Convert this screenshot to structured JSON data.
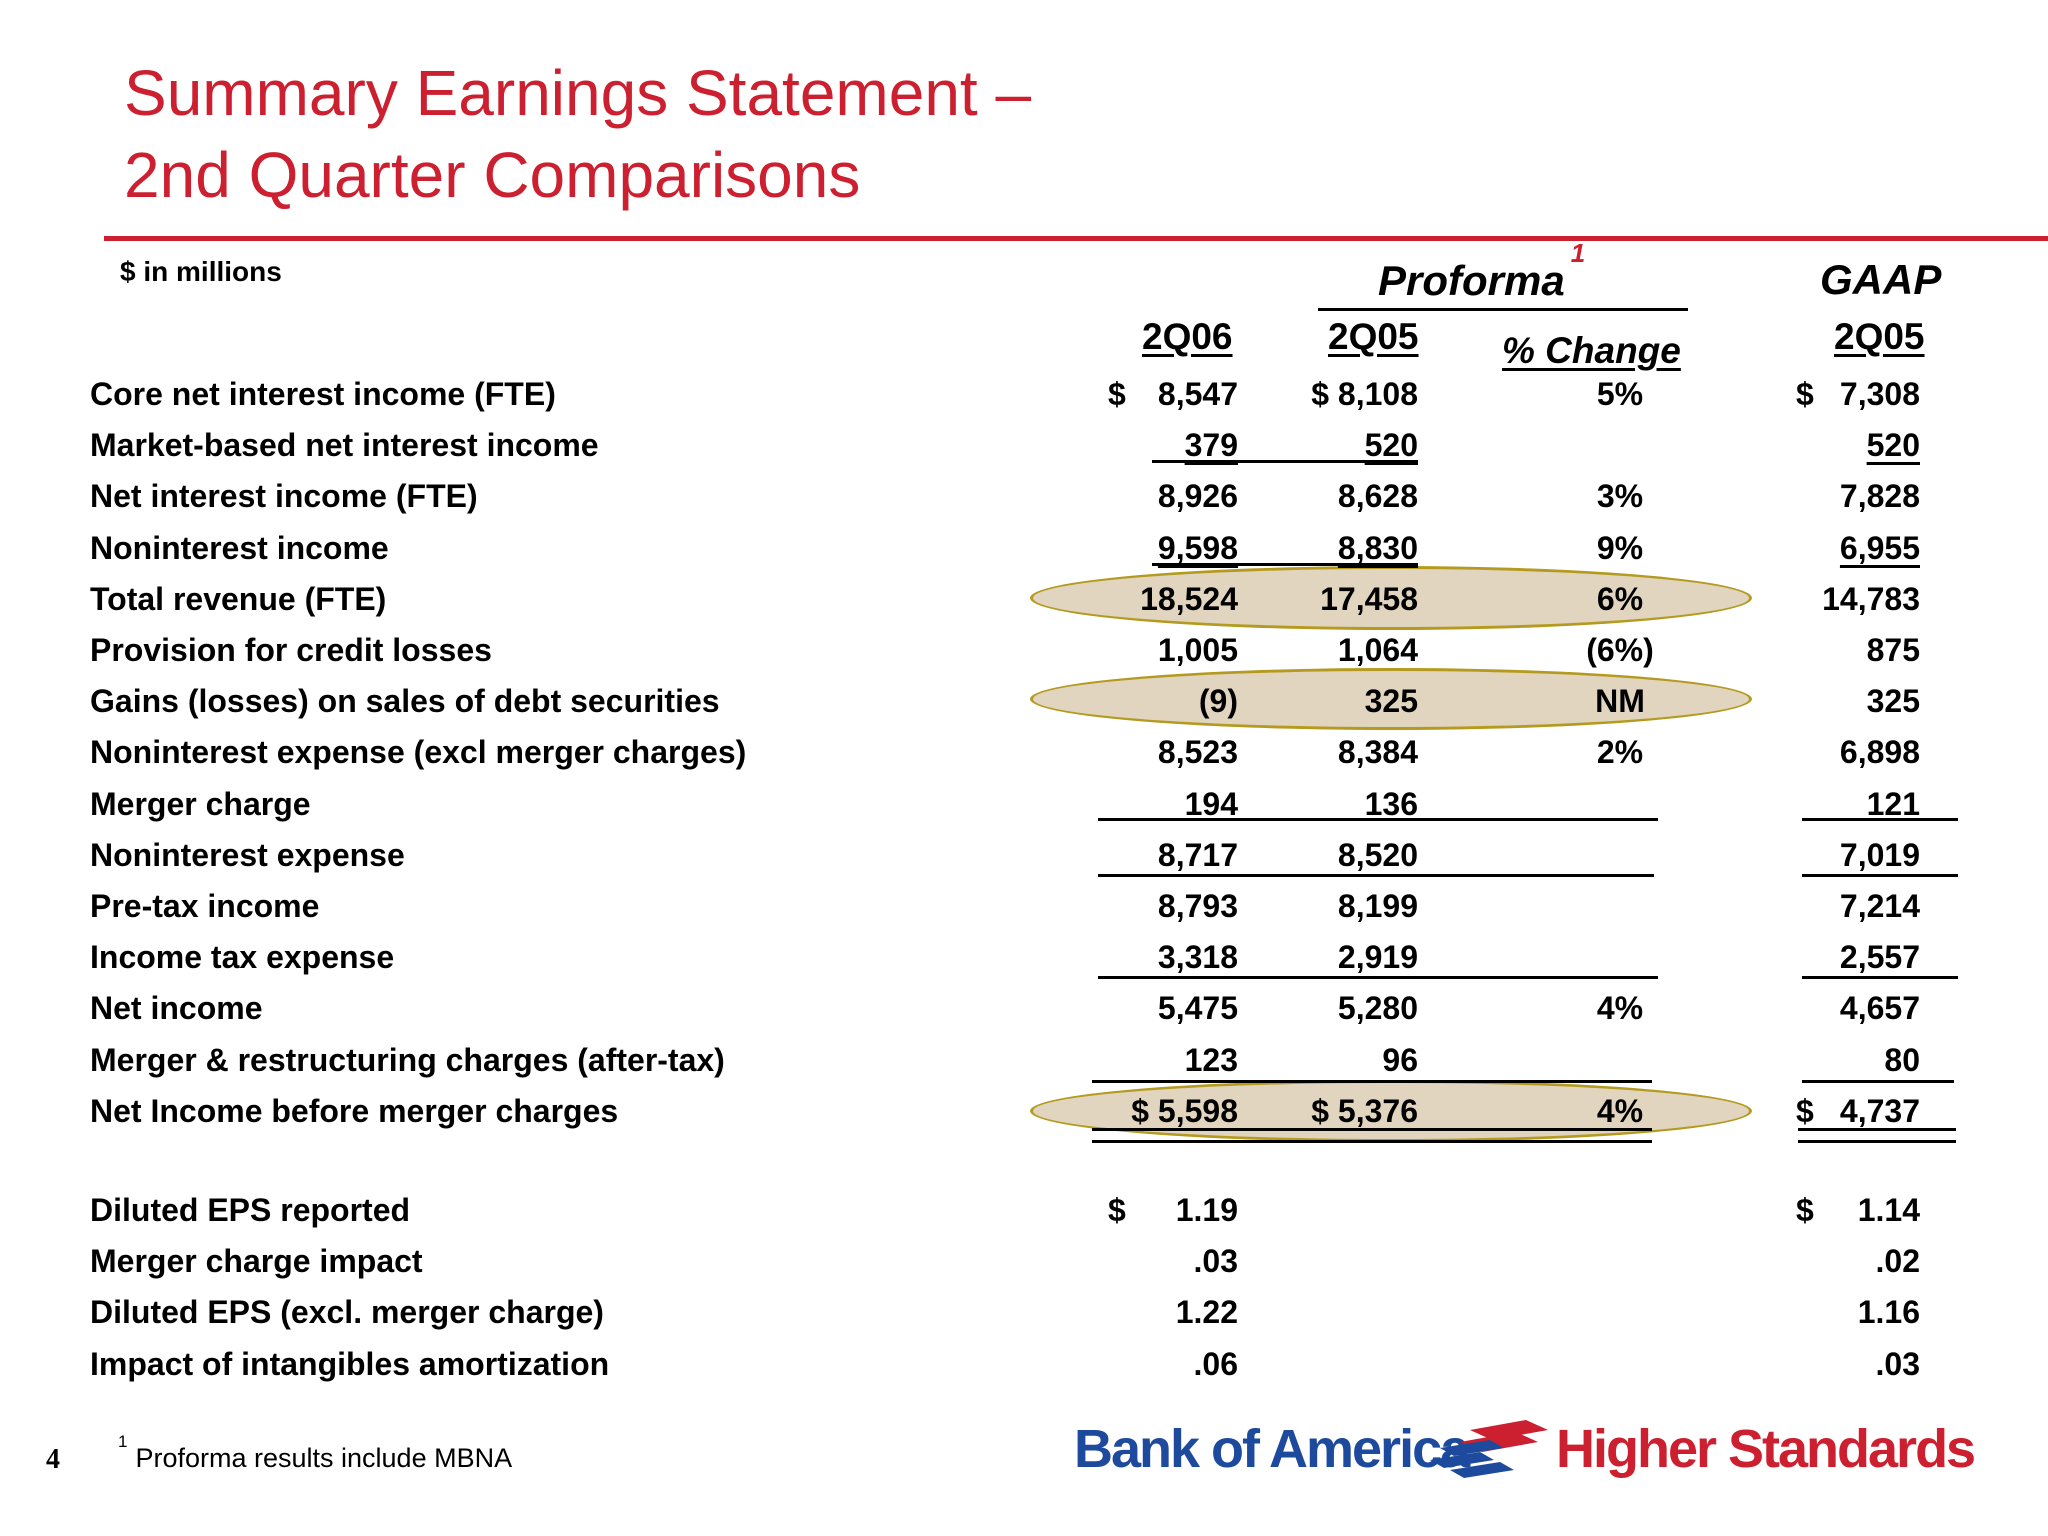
{
  "title_line1": "Summary Earnings Statement –",
  "title_line2": "2nd Quarter Comparisons",
  "units": "$ in millions",
  "groups": {
    "proforma": "Proforma",
    "proforma_note": "1",
    "gaap": "GAAP"
  },
  "columns": {
    "c1": "2Q06",
    "c2": "2Q05",
    "pct": "% Change",
    "c3": "2Q05"
  },
  "rows": [
    {
      "label": "Core net interest income (FTE)",
      "d1": "$",
      "c1": "8,547",
      "c2": "$ 8,108",
      "pct": "5%",
      "d3": "$",
      "c3": "7,308"
    },
    {
      "label": "Market-based net interest income",
      "d1": "",
      "c1": "379",
      "c2": "520",
      "pct": "",
      "d3": "",
      "c3": "520"
    },
    {
      "label": "Net interest income (FTE)",
      "d1": "",
      "c1": "8,926",
      "c2": "8,628",
      "pct": "3%",
      "d3": "",
      "c3": "7,828"
    },
    {
      "label": "Noninterest income",
      "d1": "",
      "c1": "9,598",
      "c2": "8,830",
      "pct": "9%",
      "d3": "",
      "c3": "6,955"
    },
    {
      "label": "Total revenue (FTE)",
      "d1": "",
      "c1": "18,524",
      "c2": "17,458",
      "pct": "6%",
      "d3": "",
      "c3": "14,783"
    },
    {
      "label": "Provision for credit losses",
      "d1": "",
      "c1": "1,005",
      "c2": "1,064",
      "pct": "(6%)",
      "d3": "",
      "c3": "875"
    },
    {
      "label": "Gains (losses) on sales of debt securities",
      "d1": "",
      "c1": "(9)",
      "c2": "325",
      "pct": "NM",
      "d3": "",
      "c3": "325"
    },
    {
      "label": "Noninterest expense (excl merger charges)",
      "d1": "",
      "c1": "8,523",
      "c2": "8,384",
      "pct": "2%",
      "d3": "",
      "c3": "6,898"
    },
    {
      "label": "Merger charge",
      "d1": "",
      "c1": "194",
      "c2": "136",
      "pct": "",
      "d3": "",
      "c3": "121"
    },
    {
      "label": "Noninterest expense",
      "d1": "",
      "c1": "8,717",
      "c2": "8,520",
      "pct": "",
      "d3": "",
      "c3": "7,019"
    },
    {
      "label": "Pre-tax income",
      "d1": "",
      "c1": "8,793",
      "c2": "8,199",
      "pct": "",
      "d3": "",
      "c3": "7,214"
    },
    {
      "label": "Income tax expense",
      "d1": "",
      "c1": "3,318",
      "c2": "2,919",
      "pct": "",
      "d3": "",
      "c3": "2,557"
    },
    {
      "label": "Net income",
      "d1": "",
      "c1": "5,475",
      "c2": "5,280",
      "pct": "4%",
      "d3": "",
      "c3": "4,657"
    },
    {
      "label": "Merger & restructuring charges (after-tax)",
      "d1": "",
      "c1": "123",
      "c2": "96",
      "pct": "",
      "d3": "",
      "c3": "80"
    },
    {
      "label": "Net Income before merger charges",
      "d1": "",
      "c1": "$ 5,598",
      "c2": "$  5,376",
      "pct": "4%",
      "d3": "$",
      "c3": "4,737"
    }
  ],
  "eps_rows": [
    {
      "label": "Diluted EPS reported",
      "d1": "$",
      "c1": "1.19",
      "d3": "$",
      "c3": "1.14"
    },
    {
      "label": "Merger charge impact",
      "d1": "",
      "c1": ".03",
      "d3": "",
      "c3": ".02"
    },
    {
      "label": "Diluted EPS (excl. merger charge)",
      "d1": "",
      "c1": "1.22",
      "d3": "",
      "c3": "1.16"
    },
    {
      "label": "Impact of intangibles amortization",
      "d1": "",
      "c1": ".06",
      "d3": "",
      "c3": ".03"
    }
  ],
  "page_number": "4",
  "footnote_mark": "1",
  "footnote_text": "Proforma results include MBNA",
  "logo_text": "Bank of America",
  "tagline": "Higher Standards",
  "colors": {
    "title": "#cc1f2f",
    "highlight_fill": "#e1d5bf",
    "highlight_stroke": "#b49a1f",
    "logo_blue": "#1d4a9c"
  }
}
